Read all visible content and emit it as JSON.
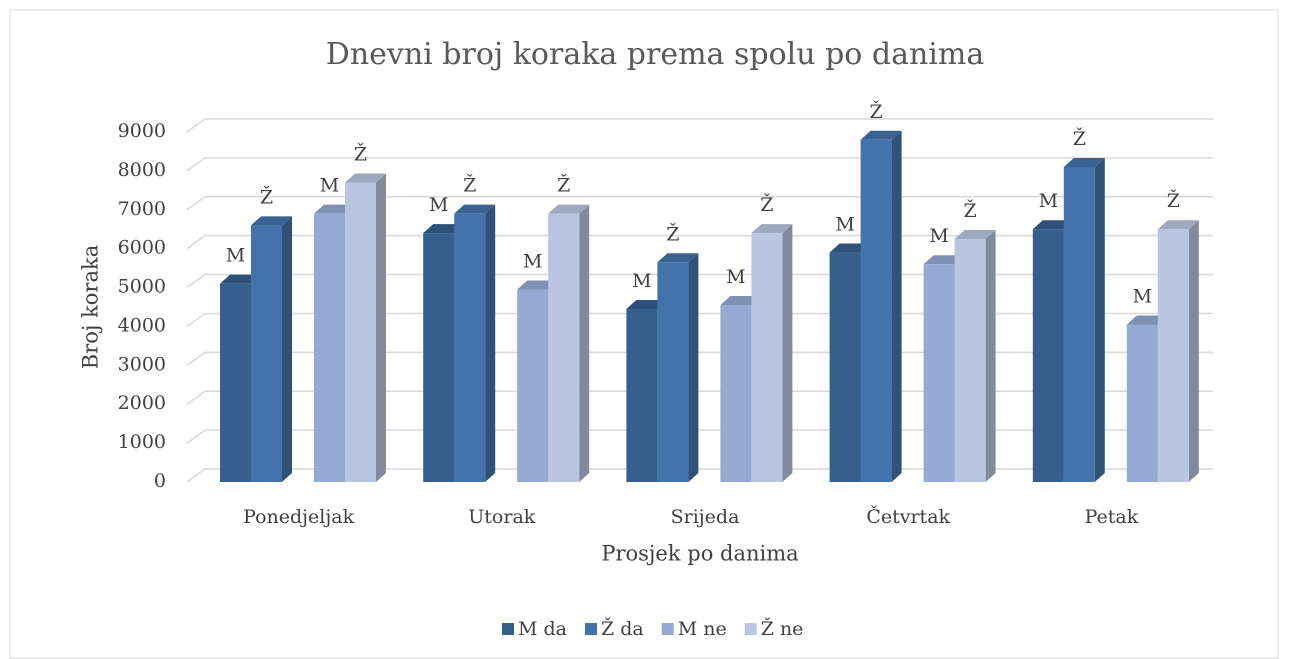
{
  "chart_data": {
    "type": "bar3d",
    "title": "Dnevni broj koraka prema spolu po danima",
    "x_label": "Prosjek po danima",
    "y_label": "Broj koraka",
    "categories": [
      "Ponedjeljak",
      "Utorak",
      "Srijeda",
      "Četvrtak",
      "Petak"
    ],
    "series": [
      {
        "name": "M da",
        "color": "#365f8e",
        "values": [
          5100,
          6400,
          4450,
          5900,
          6500
        ],
        "value_labels": [
          "M",
          "M",
          "M",
          "M",
          "M"
        ]
      },
      {
        "name": "Ž da",
        "color": "#4473ab",
        "values": [
          6600,
          6900,
          5650,
          8800,
          8100
        ],
        "value_labels": [
          "Ž",
          "Ž",
          "Ž",
          "Ž",
          "Ž"
        ]
      },
      {
        "name": "M ne",
        "color": "#95aad2",
        "values": [
          6900,
          4950,
          4550,
          5600,
          4050
        ],
        "value_labels": [
          "M",
          "M",
          "M",
          "M",
          "M"
        ]
      },
      {
        "name": "Ž ne",
        "color": "#bac6e1",
        "values": [
          7700,
          6900,
          6400,
          6250,
          6500
        ],
        "value_labels": [
          "Ž",
          "Ž",
          "Ž",
          "Ž",
          "Ž"
        ]
      }
    ],
    "ylim": [
      0,
      9000
    ],
    "yticks": [
      0,
      1000,
      2000,
      3000,
      4000,
      5000,
      6000,
      7000,
      8000,
      9000
    ],
    "grid": true,
    "legend": "bottom"
  }
}
